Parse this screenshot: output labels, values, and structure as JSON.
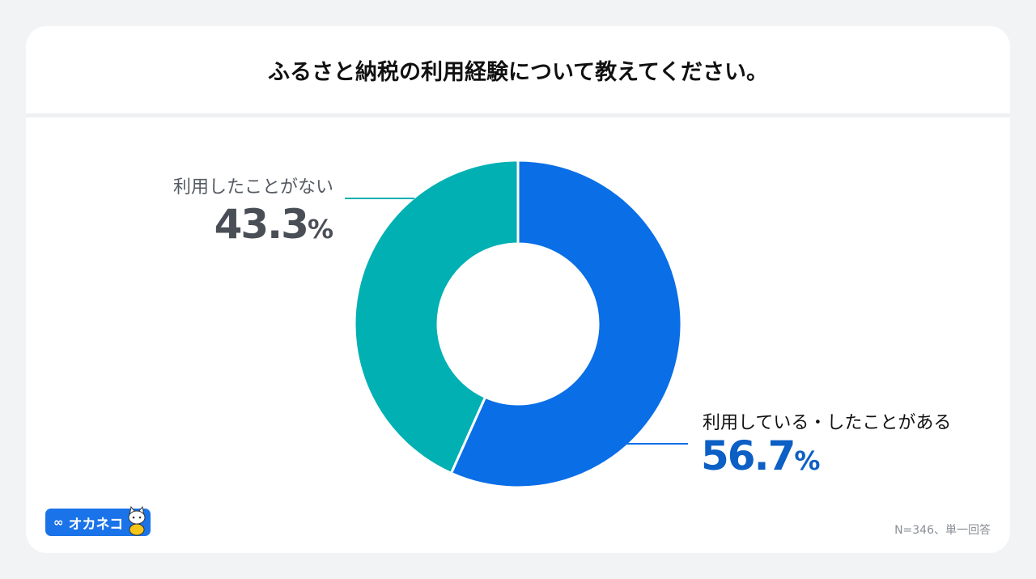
{
  "title": "ふるさと納税の利用経験について教えてください。",
  "chart_data": {
    "type": "pie",
    "donut": true,
    "slices": [
      {
        "label": "利用している・したことがある",
        "value": 56.7,
        "display": "56.7",
        "unit": "%",
        "color": "#0a6ee6",
        "label_color": "#111111",
        "value_color": "#0c5fc4"
      },
      {
        "label": "利用したことがない",
        "value": 43.3,
        "display": "43.3",
        "unit": "%",
        "color": "#00b0b2",
        "label_color": "#555b63",
        "value_color": "#4a4f57"
      }
    ]
  },
  "footnote": "N=346、単一回答",
  "logo": {
    "text": "オカネコ",
    "glyph_icon": "infinity-icon",
    "mascot_icon": "cat-mascot-icon",
    "color": "#1a73e8"
  }
}
